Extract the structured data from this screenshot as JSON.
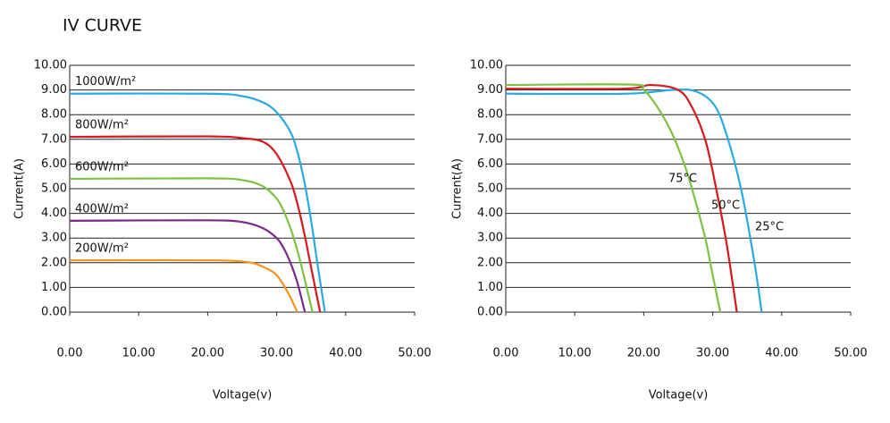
{
  "title": "IV CURVE",
  "chart_data": [
    {
      "type": "line",
      "x_label": "Voltage(v)",
      "y_label": "Current(A)",
      "xlim": [
        0,
        50
      ],
      "ylim": [
        0,
        10
      ],
      "grid": true,
      "xticks": [
        {
          "value": 0,
          "label": "0.00"
        },
        {
          "value": 10,
          "label": "10.00"
        },
        {
          "value": 20,
          "label": "20.00"
        },
        {
          "value": 30,
          "label": "30.00"
        },
        {
          "value": 40,
          "label": "40.00"
        },
        {
          "value": 50,
          "label": "50.00"
        }
      ],
      "yticks": [
        {
          "value": 0,
          "label": "0.00"
        },
        {
          "value": 1,
          "label": "1.00"
        },
        {
          "value": 2,
          "label": "2.00"
        },
        {
          "value": 3,
          "label": "3.00"
        },
        {
          "value": 4,
          "label": "4.00"
        },
        {
          "value": 5,
          "label": "5.00"
        },
        {
          "value": 6,
          "label": "6.00"
        },
        {
          "value": 7,
          "label": "7.00"
        },
        {
          "value": 8,
          "label": "8.00"
        },
        {
          "value": 9,
          "label": "9.00"
        },
        {
          "value": 10,
          "label": "10.00"
        }
      ],
      "series": [
        {
          "name": "1000W/m²",
          "color": "#29abe2",
          "x": [
            0,
            20,
            25,
            28,
            30,
            32,
            33,
            34,
            35,
            36,
            37
          ],
          "values": [
            8.85,
            8.85,
            8.75,
            8.5,
            8.1,
            7.3,
            6.5,
            5.3,
            3.7,
            1.8,
            0
          ]
        },
        {
          "name": "800W/m²",
          "color": "#d7191f",
          "x": [
            0,
            20,
            25,
            28,
            30,
            32,
            33,
            34,
            35,
            36.3
          ],
          "values": [
            7.1,
            7.12,
            7.05,
            6.9,
            6.4,
            5.3,
            4.4,
            3.2,
            1.8,
            0
          ]
        },
        {
          "name": "600W/m²",
          "color": "#7dc242",
          "x": [
            0,
            20,
            25,
            28,
            30,
            31,
            32,
            33,
            34,
            35.2
          ],
          "values": [
            5.4,
            5.42,
            5.35,
            5.1,
            4.6,
            4.1,
            3.4,
            2.5,
            1.4,
            0
          ]
        },
        {
          "name": "400W/m²",
          "color": "#7b2a8c",
          "x": [
            0,
            20,
            25,
            28,
            30,
            31,
            32,
            33,
            34.1
          ],
          "values": [
            3.7,
            3.72,
            3.65,
            3.4,
            3.0,
            2.6,
            2.0,
            1.2,
            0
          ]
        },
        {
          "name": "200W/m²",
          "color": "#f7941d",
          "x": [
            0,
            20,
            25,
            27,
            29,
            30,
            31,
            32,
            33
          ],
          "values": [
            2.1,
            2.1,
            2.05,
            1.95,
            1.7,
            1.5,
            1.1,
            0.6,
            0
          ]
        }
      ]
    },
    {
      "type": "line",
      "x_label": "Voltage(v)",
      "y_label": "Current(A)",
      "xlim": [
        0,
        50
      ],
      "ylim": [
        0,
        10
      ],
      "grid": true,
      "xticks": [
        {
          "value": 0,
          "label": "0.00"
        },
        {
          "value": 10,
          "label": "10.00"
        },
        {
          "value": 20,
          "label": "20.00"
        },
        {
          "value": 30,
          "label": "30.00"
        },
        {
          "value": 40,
          "label": "40.00"
        },
        {
          "value": 50,
          "label": "50.00"
        }
      ],
      "yticks": [
        {
          "value": 0,
          "label": "0.00"
        },
        {
          "value": 1,
          "label": "1.00"
        },
        {
          "value": 2,
          "label": "2.00"
        },
        {
          "value": 3,
          "label": "3.00"
        },
        {
          "value": 4,
          "label": "4.00"
        },
        {
          "value": 5,
          "label": "5.00"
        },
        {
          "value": 6,
          "label": "6.00"
        },
        {
          "value": 7,
          "label": "7.00"
        },
        {
          "value": 8,
          "label": "8.00"
        },
        {
          "value": 9,
          "label": "9.00"
        },
        {
          "value": 10,
          "label": "10.00"
        }
      ],
      "series": [
        {
          "name": "25°C",
          "color": "#29abe2",
          "x": [
            0,
            17.5,
            24,
            27.5,
            30.2,
            32,
            34.1,
            36,
            37.1
          ],
          "values": [
            8.85,
            8.85,
            9.0,
            8.95,
            8.4,
            7.2,
            5.0,
            2.1,
            0
          ]
        },
        {
          "name": "50°C",
          "color": "#d7191f",
          "x": [
            0,
            17,
            21,
            25,
            27,
            29,
            30.5,
            32,
            33.5
          ],
          "values": [
            9.05,
            9.05,
            9.2,
            9.0,
            8.3,
            6.9,
            5.0,
            2.8,
            0
          ]
        },
        {
          "name": "75°C",
          "color": "#7dc242",
          "x": [
            0,
            18,
            20,
            22,
            24,
            26,
            27.5,
            29,
            30,
            31.1
          ],
          "values": [
            9.2,
            9.22,
            9.0,
            8.3,
            7.3,
            5.9,
            4.5,
            2.9,
            1.5,
            0
          ]
        }
      ]
    }
  ]
}
